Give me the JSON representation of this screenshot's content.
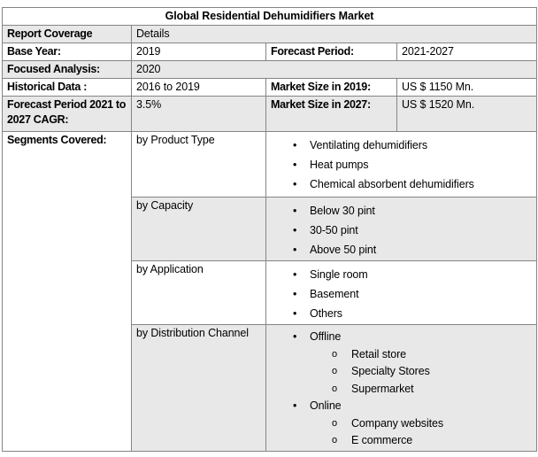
{
  "title": "Global Residential Dehumidifiers Market",
  "fields": {
    "report_coverage": {
      "label": "Report Coverage",
      "value": "Details"
    },
    "base_year": {
      "label": "Base Year:",
      "value": "2019"
    },
    "forecast_period": {
      "label": "Forecast Period:",
      "value": "2021-2027"
    },
    "focused_analysis": {
      "label": "Focused Analysis:",
      "value": "2020"
    },
    "historical_data": {
      "label": "Historical Data :",
      "value": "2016 to 2019"
    },
    "market_size_2019": {
      "label": "Market Size in 2019:",
      "value": "US $ 1150 Mn."
    },
    "cagr": {
      "label": "Forecast Period 2021 to 2027 CAGR:",
      "value": "3.5%"
    },
    "market_size_2027": {
      "label": "Market Size in 2027:",
      "value": "US $ 1520 Mn."
    },
    "segments_covered": {
      "label": "Segments Covered:"
    }
  },
  "segments": [
    {
      "name": "by Product Type",
      "items": [
        "Ventilating dehumidifiers",
        "Heat pumps",
        "Chemical absorbent dehumidifiers"
      ]
    },
    {
      "name": "by Capacity",
      "items": [
        "Below 30 pint",
        "30-50 pint",
        "Above 50 pint"
      ]
    },
    {
      "name": "by Application",
      "items": [
        "Single room",
        "Basement",
        "Others"
      ]
    },
    {
      "name": "by Distribution Channel",
      "items": [
        {
          "label": "Offline",
          "children": [
            "Retail store",
            "Specialty Stores",
            "Supermarket"
          ]
        },
        {
          "label": "Online",
          "children": [
            "Company websites",
            "E commerce"
          ]
        }
      ]
    }
  ],
  "colors": {
    "row_shade": "#e8e8e8",
    "border": "#858585",
    "text": "#000000",
    "background": "#ffffff"
  }
}
